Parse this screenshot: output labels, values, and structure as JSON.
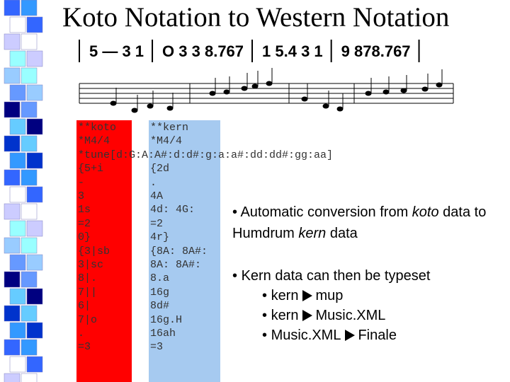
{
  "title": "Koto Notation to Western Notation",
  "numbered_notation": [
    "5 — 3 1",
    "O 3 3 8.767",
    "1 5.4 3 1",
    "9 878.767"
  ],
  "rows": [
    {
      "koto": "**koto",
      "kern": "**kern"
    },
    {
      "koto": "*M4/4",
      "kern": "*M4/4"
    },
    {
      "koto": "*tune[d:G:A:A#:d:d#:g:a:a#:dd:dd#:gg:aa]"
    },
    {
      "koto": "{5+i",
      "kern": "{2d"
    },
    {
      "koto": "-",
      "kern": "."
    },
    {
      "koto": "3",
      "kern": "4A"
    },
    {
      "koto": "1s",
      "kern": "4d: 4G:"
    },
    {
      "koto": "=2",
      "kern": "=2"
    },
    {
      "koto": "0}",
      "kern": "4r}"
    },
    {
      "koto": "{3|sb",
      "kern": "{8A: 8A#:"
    },
    {
      "koto": "3|sc",
      "kern": "8A: 8A#:"
    },
    {
      "koto": "8|.",
      "kern": "8.a"
    },
    {
      "koto": "7||",
      "kern": "16g"
    },
    {
      "koto": "6|",
      "kern": "8d#"
    },
    {
      "koto": "7|o",
      "kern": "16g.H"
    },
    {
      "koto": ".",
      "kern": "16ah"
    },
    {
      "koto": "=3",
      "kern": "=3"
    }
  ],
  "bullets": [
    {
      "parts": [
        {
          "text": "Automatic conversion from ",
          "italic": false
        },
        {
          "text": "koto",
          "italic": true
        },
        {
          "text": " data to Humdrum ",
          "italic": false
        },
        {
          "text": "kern",
          "italic": true
        },
        {
          "text": " data",
          "italic": false
        }
      ]
    },
    {
      "parts": [
        {
          "text": "Kern data can then be typeset",
          "italic": false
        }
      ],
      "items": [
        {
          "from": "kern",
          "to": "mup"
        },
        {
          "from": "kern",
          "to": "Music.XML"
        },
        {
          "from": "Music.XML",
          "to": "Finale"
        }
      ]
    }
  ]
}
